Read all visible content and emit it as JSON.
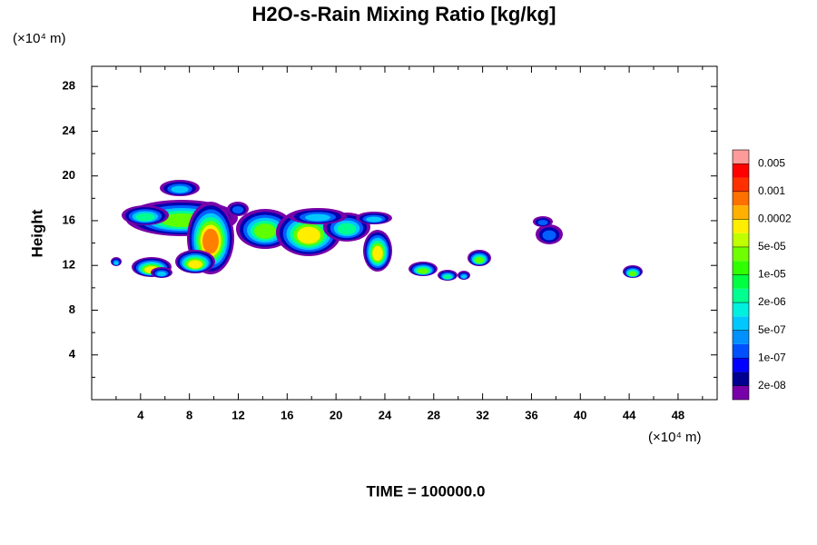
{
  "chart_data": {
    "type": "contour",
    "title": "H2O-s-Rain Mixing Ratio [kg/kg]",
    "ylabel": "Height",
    "y_unit_label": "(×10⁴ m)",
    "x_unit_label": "(×10⁴ m)",
    "footer": "TIME = 100000.0",
    "xlim": [
      0,
      51.2
    ],
    "ylim": [
      0,
      29.8
    ],
    "xticks": [
      4,
      8,
      12,
      16,
      20,
      24,
      28,
      32,
      36,
      40,
      44,
      48
    ],
    "yticks": [
      4,
      8,
      12,
      16,
      20,
      24,
      28
    ],
    "colorbar": {
      "colors": [
        "#7800a8",
        "#000090",
        "#0000ff",
        "#0050ff",
        "#0090ff",
        "#00c8ff",
        "#00f0e0",
        "#00ff90",
        "#00ff40",
        "#30ff00",
        "#70ff00",
        "#c0ff00",
        "#ffee00",
        "#ffb000",
        "#ff7000",
        "#ff3000",
        "#ff0000",
        "#ff9a9a"
      ],
      "ticks": [
        {
          "value": 2e-08,
          "label": "2e-08"
        },
        {
          "value": 1e-07,
          "label": "1e-07"
        },
        {
          "value": 5e-07,
          "label": "5e-07"
        },
        {
          "value": 2e-06,
          "label": "2e-06"
        },
        {
          "value": 1e-05,
          "label": "1e-05"
        },
        {
          "value": 5e-05,
          "label": "5e-05"
        },
        0.0002,
        0.001,
        0.005
      ]
    }
  }
}
